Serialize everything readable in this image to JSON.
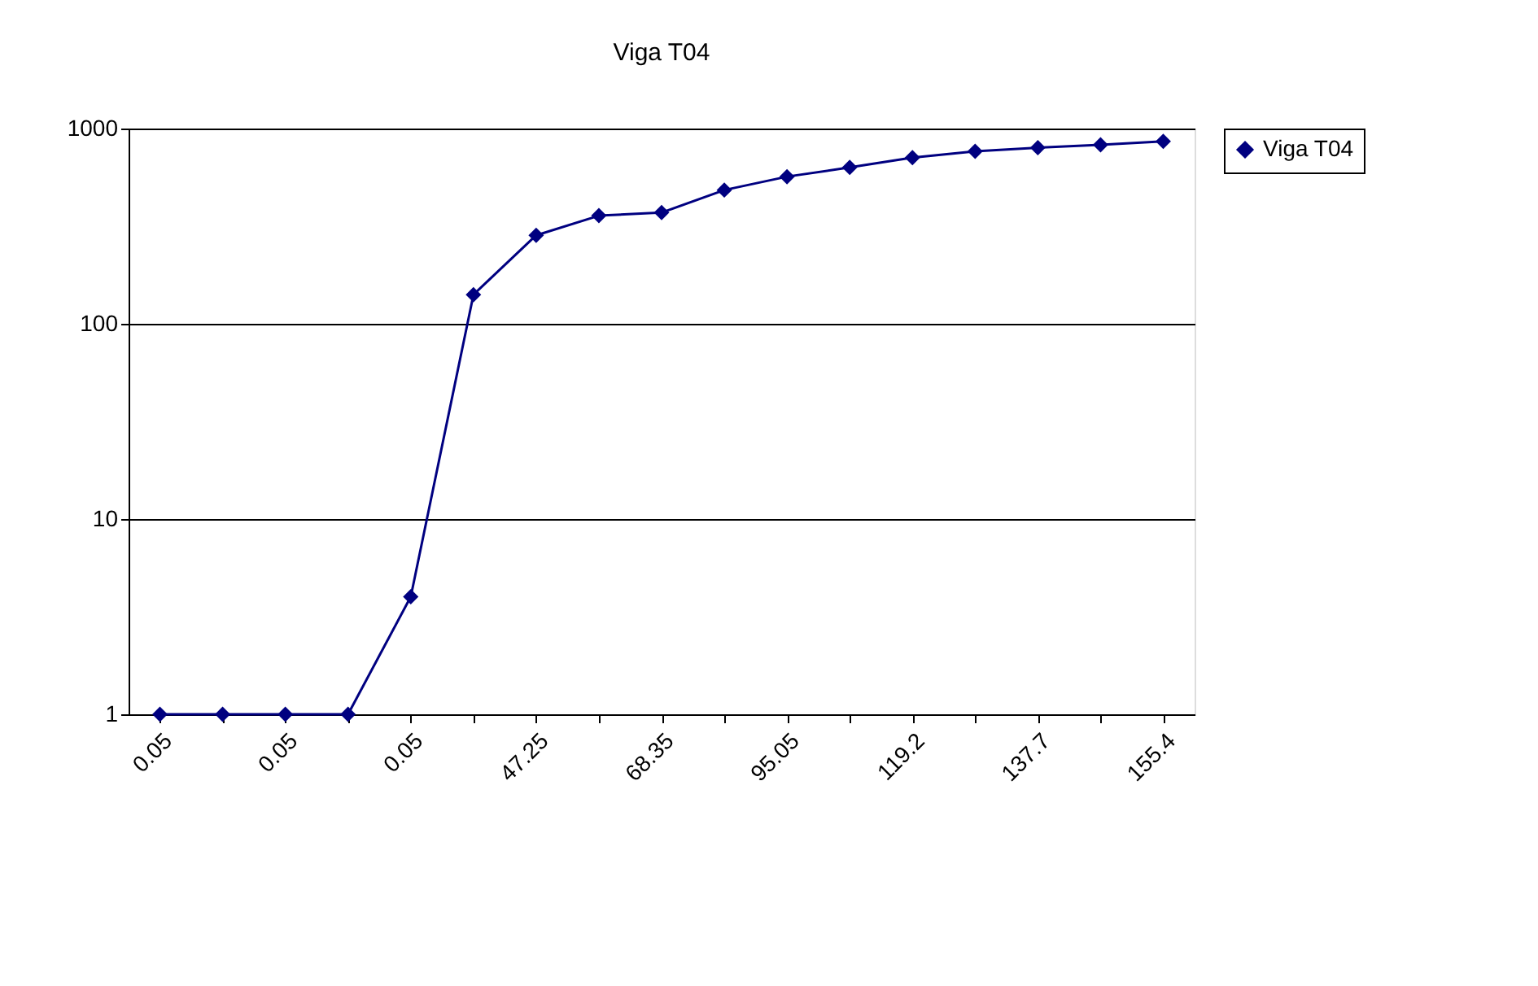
{
  "chart_data": {
    "type": "line",
    "title": "Viga T04",
    "categories": [
      "0.05",
      null,
      "0.05",
      null,
      "0.05",
      null,
      "47.25",
      null,
      "68.35",
      null,
      "95.05",
      null,
      "119.2",
      null,
      "137.7",
      null,
      "155.4"
    ],
    "series": [
      {
        "name": "Viga T04",
        "color": "#000080",
        "values": [
          1,
          1,
          1,
          1,
          4,
          141,
          284,
          358,
          371,
          484,
          567,
          632,
          710,
          765,
          798,
          826,
          860
        ]
      }
    ],
    "log": "y",
    "ylim": [
      1,
      1000
    ],
    "yticks": [
      1,
      10,
      100,
      1000
    ],
    "grid": "y",
    "legend": "right",
    "marker": "diamond",
    "line_style": "solid"
  }
}
